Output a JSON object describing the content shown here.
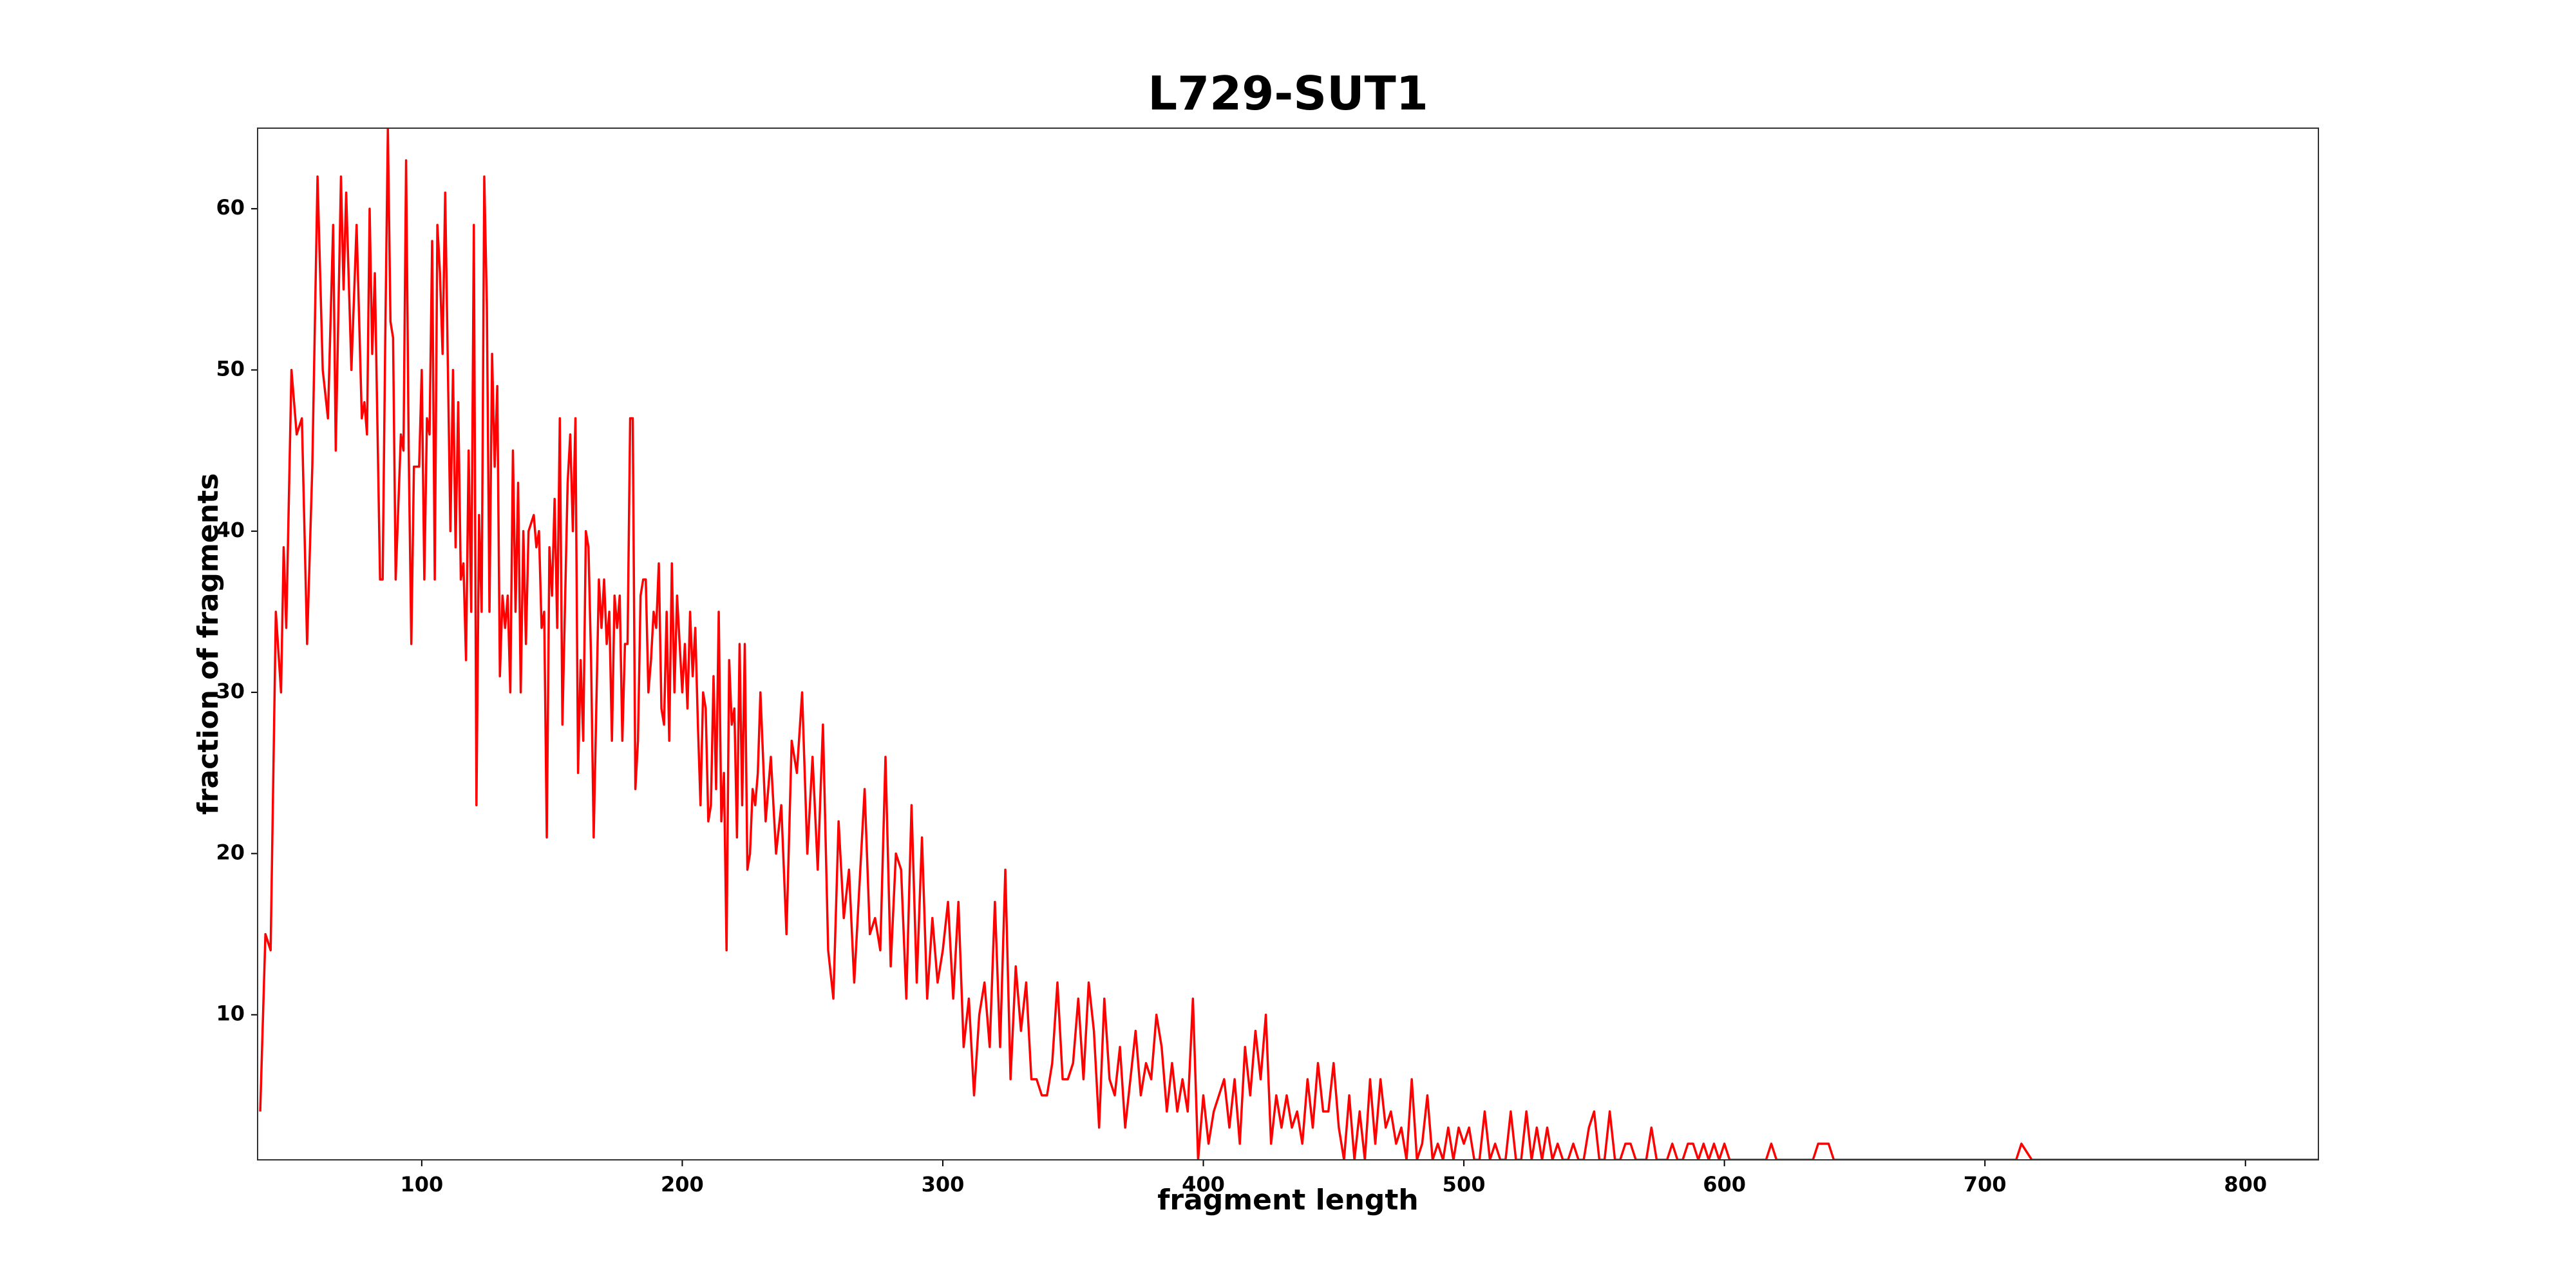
{
  "chart_data": {
    "type": "line",
    "title": "L729-SUT1",
    "x_label": "fragment length",
    "y_label": "fraction of fragments",
    "xlim": [
      37,
      828
    ],
    "ylim": [
      1,
      65
    ],
    "xticks": [
      100,
      200,
      300,
      400,
      500,
      600,
      700,
      800
    ],
    "yticks": [
      10,
      20,
      30,
      40,
      50,
      60
    ],
    "grid": false,
    "x": [
      38,
      40,
      42,
      44,
      46,
      47,
      48,
      50,
      52,
      54,
      56,
      58,
      60,
      62,
      64,
      66,
      67,
      69,
      70,
      71,
      73,
      75,
      77,
      78,
      79,
      80,
      81,
      82,
      84,
      85,
      86,
      87,
      88,
      89,
      90,
      92,
      93,
      94,
      95,
      96,
      97,
      99,
      100,
      101,
      102,
      103,
      104,
      105,
      106,
      107,
      108,
      109,
      111,
      112,
      113,
      114,
      115,
      116,
      117,
      118,
      119,
      120,
      121,
      122,
      123,
      124,
      125,
      126,
      127,
      128,
      129,
      130,
      131,
      132,
      133,
      134,
      135,
      136,
      137,
      138,
      139,
      140,
      141,
      143,
      144,
      145,
      146,
      147,
      148,
      149,
      150,
      151,
      152,
      153,
      154,
      156,
      157,
      158,
      159,
      160,
      161,
      162,
      163,
      164,
      165,
      166,
      167,
      168,
      169,
      170,
      171,
      172,
      173,
      174,
      175,
      176,
      177,
      178,
      179,
      180,
      181,
      182,
      183,
      184,
      185,
      186,
      187,
      188,
      189,
      190,
      191,
      192,
      193,
      194,
      195,
      196,
      197,
      198,
      199,
      200,
      201,
      202,
      203,
      204,
      205,
      206,
      207,
      208,
      209,
      210,
      211,
      212,
      213,
      214,
      215,
      216,
      217,
      218,
      219,
      220,
      221,
      222,
      223,
      224,
      225,
      226,
      227,
      228,
      229,
      230,
      232,
      234,
      236,
      238,
      240,
      242,
      244,
      246,
      248,
      250,
      252,
      254,
      256,
      258,
      260,
      262,
      264,
      266,
      268,
      270,
      272,
      274,
      276,
      278,
      280,
      282,
      284,
      286,
      288,
      290,
      292,
      294,
      296,
      298,
      300,
      302,
      304,
      306,
      308,
      310,
      312,
      314,
      316,
      318,
      320,
      322,
      324,
      326,
      328,
      330,
      332,
      334,
      336,
      338,
      340,
      342,
      344,
      346,
      348,
      350,
      352,
      354,
      356,
      358,
      360,
      362,
      364,
      366,
      368,
      370,
      372,
      374,
      376,
      378,
      380,
      382,
      384,
      386,
      388,
      390,
      392,
      394,
      396,
      398,
      400,
      402,
      404,
      406,
      408,
      410,
      412,
      414,
      416,
      418,
      420,
      422,
      424,
      426,
      428,
      430,
      432,
      434,
      436,
      438,
      440,
      442,
      444,
      446,
      448,
      450,
      452,
      454,
      456,
      458,
      460,
      462,
      464,
      466,
      468,
      470,
      472,
      474,
      476,
      478,
      480,
      482,
      484,
      486,
      488,
      490,
      492,
      494,
      496,
      498,
      500,
      502,
      504,
      506,
      508,
      510,
      512,
      514,
      516,
      518,
      520,
      522,
      524,
      526,
      528,
      530,
      532,
      534,
      536,
      538,
      540,
      542,
      544,
      546,
      548,
      550,
      552,
      554,
      556,
      558,
      560,
      562,
      564,
      566,
      568,
      570,
      572,
      574,
      576,
      578,
      580,
      582,
      584,
      586,
      588,
      590,
      592,
      594,
      596,
      598,
      600,
      602,
      604,
      606,
      608,
      610,
      616,
      618,
      620,
      634,
      636,
      640,
      642,
      712,
      714,
      718,
      828
    ],
    "series": [
      {
        "name": "L729-SUT1",
        "color": "#ff0000",
        "values": [
          4,
          15,
          14,
          35,
          30,
          39,
          34,
          50,
          46,
          47,
          33,
          44,
          62,
          50,
          47,
          59,
          45,
          62,
          55,
          61,
          50,
          59,
          47,
          48,
          46,
          60,
          51,
          56,
          37,
          37,
          52,
          65,
          53,
          52,
          37,
          46,
          45,
          63,
          45,
          33,
          44,
          44,
          50,
          37,
          47,
          46,
          58,
          37,
          59,
          56,
          51,
          61,
          40,
          50,
          39,
          48,
          37,
          38,
          32,
          45,
          35,
          59,
          23,
          41,
          35,
          62,
          54,
          35,
          51,
          44,
          49,
          31,
          36,
          34,
          36,
          30,
          45,
          35,
          43,
          30,
          40,
          33,
          40,
          41,
          39,
          40,
          34,
          35,
          21,
          39,
          36,
          42,
          34,
          47,
          28,
          43,
          46,
          40,
          47,
          25,
          32,
          27,
          40,
          39,
          32,
          21,
          29,
          37,
          34,
          37,
          33,
          35,
          27,
          36,
          34,
          36,
          27,
          33,
          33,
          47,
          47,
          24,
          27,
          36,
          37,
          37,
          30,
          32,
          35,
          34,
          38,
          29,
          28,
          35,
          27,
          38,
          30,
          36,
          33,
          30,
          33,
          29,
          35,
          31,
          34,
          28,
          23,
          30,
          29,
          22,
          23,
          31,
          24,
          35,
          22,
          25,
          14,
          32,
          28,
          29,
          21,
          33,
          23,
          33,
          19,
          20,
          24,
          23,
          25,
          30,
          22,
          26,
          20,
          23,
          15,
          27,
          25,
          30,
          20,
          26,
          19,
          28,
          14,
          11,
          22,
          16,
          19,
          12,
          18,
          24,
          15,
          16,
          14,
          26,
          13,
          20,
          19,
          11,
          23,
          12,
          21,
          11,
          16,
          12,
          14,
          17,
          11,
          17,
          8,
          11,
          5,
          10,
          12,
          8,
          17,
          8,
          19,
          6,
          13,
          9,
          12,
          6,
          6,
          5,
          5,
          7,
          12,
          6,
          6,
          7,
          11,
          6,
          12,
          9,
          3,
          11,
          6,
          5,
          8,
          3,
          6,
          9,
          5,
          7,
          6,
          10,
          8,
          4,
          7,
          4,
          6,
          4,
          11,
          1,
          5,
          2,
          4,
          5,
          6,
          3,
          6,
          2,
          8,
          5,
          9,
          6,
          10,
          2,
          5,
          3,
          5,
          3,
          4,
          2,
          6,
          3,
          7,
          4,
          4,
          7,
          3,
          1,
          5,
          1,
          4,
          1,
          6,
          2,
          6,
          3,
          4,
          2,
          3,
          1,
          6,
          1,
          2,
          5,
          1,
          2,
          1,
          3,
          1,
          3,
          2,
          3,
          1,
          1,
          4,
          1,
          2,
          1,
          1,
          4,
          1,
          1,
          4,
          1,
          3,
          1,
          3,
          1,
          2,
          1,
          1,
          2,
          1,
          1,
          3,
          4,
          1,
          1,
          4,
          1,
          1,
          2,
          2,
          1,
          1,
          1,
          3,
          1,
          1,
          1,
          2,
          1,
          1,
          2,
          2,
          1,
          2,
          1,
          2,
          1,
          2,
          1,
          1,
          1,
          1,
          1,
          1,
          2,
          1,
          1,
          2,
          2,
          1,
          1,
          2,
          1,
          1
        ]
      }
    ]
  }
}
